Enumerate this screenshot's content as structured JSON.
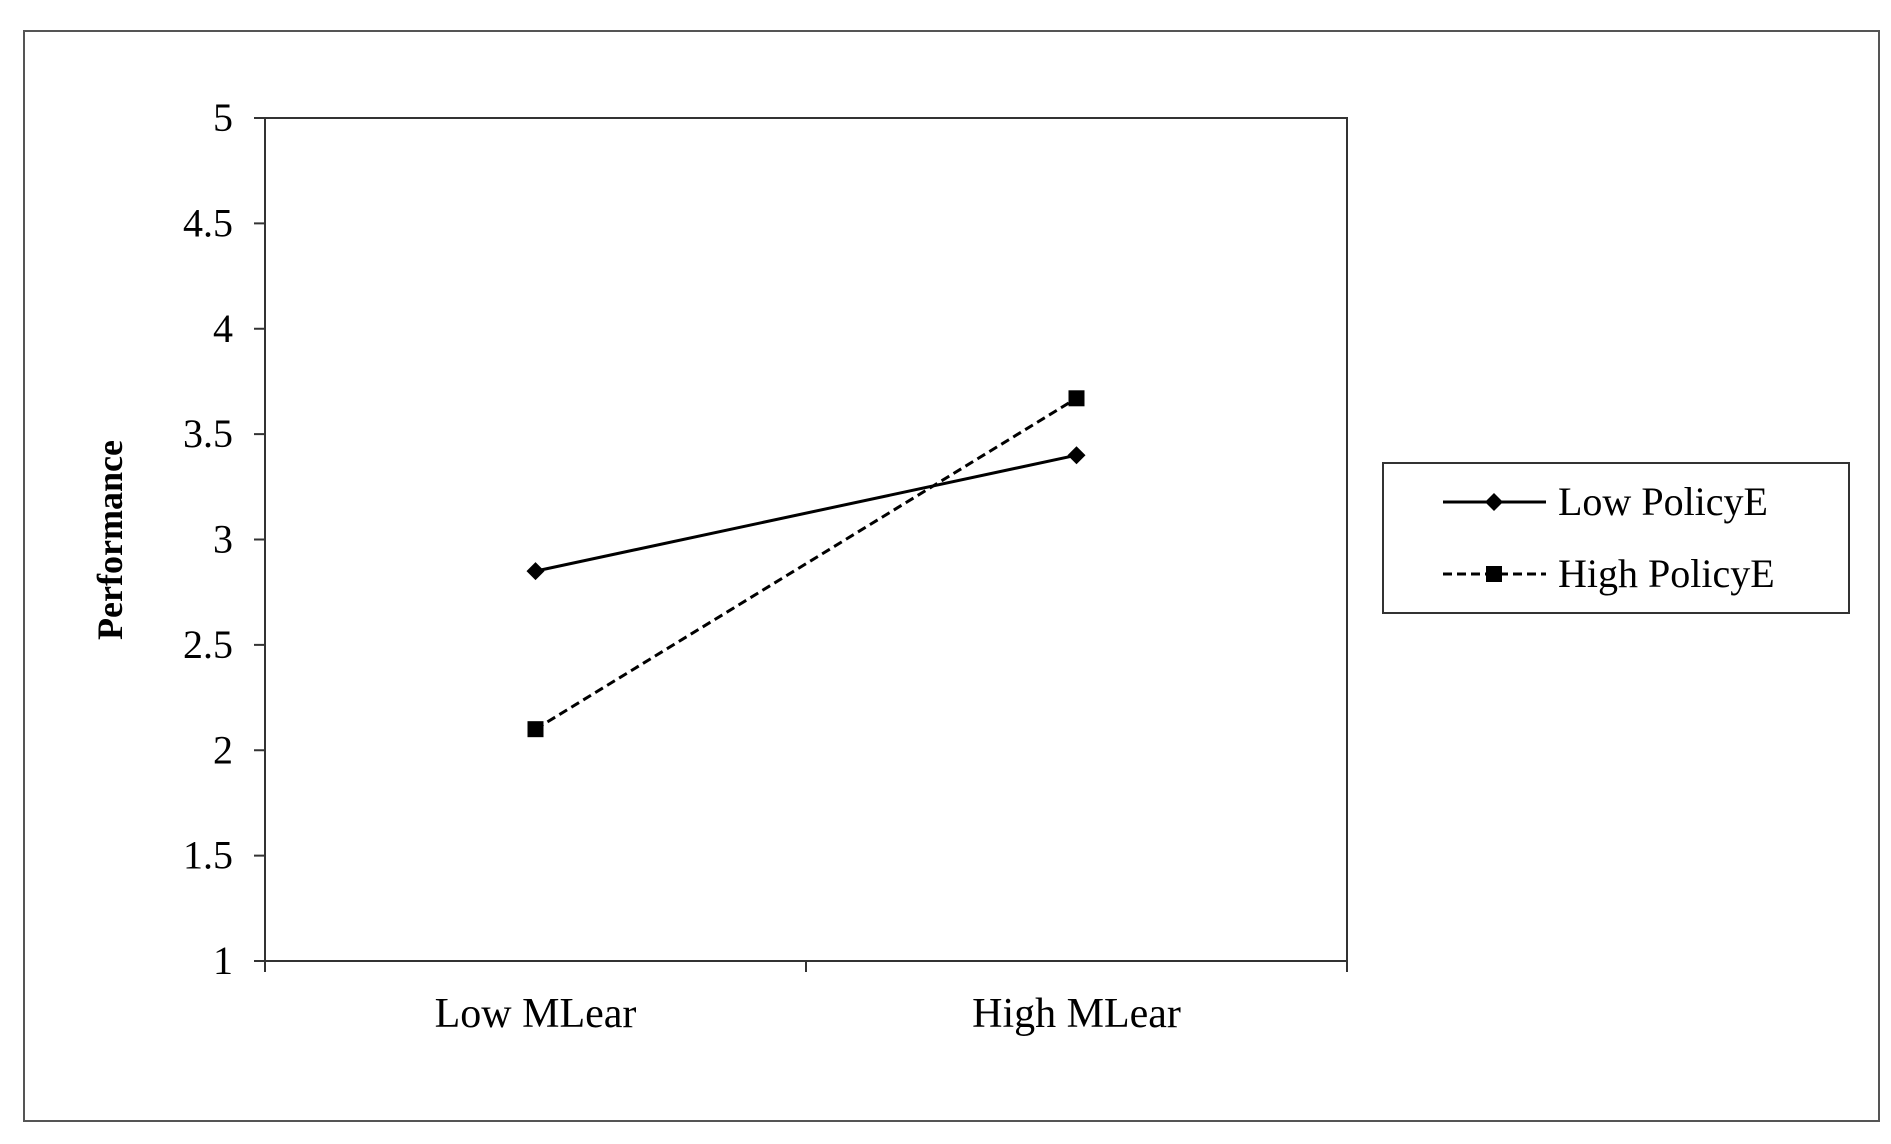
{
  "chart_data": {
    "type": "line",
    "title": "",
    "xlabel": "",
    "ylabel": "Performance",
    "categories": [
      "Low MLear",
      "High MLear"
    ],
    "ylim": [
      1,
      5
    ],
    "yticks": [
      "1",
      "1.5",
      "2",
      "2.5",
      "3",
      "3.5",
      "4",
      "4.5",
      "5"
    ],
    "grid": false,
    "legend_position": "right",
    "series": [
      {
        "name": "Low PolicyE",
        "values": [
          2.85,
          3.4
        ],
        "marker": "diamond",
        "line_style": "solid",
        "color": "#000000"
      },
      {
        "name": "High PolicyE",
        "values": [
          2.1,
          3.67
        ],
        "marker": "square",
        "line_style": "dashed",
        "color": "#000000"
      }
    ]
  }
}
